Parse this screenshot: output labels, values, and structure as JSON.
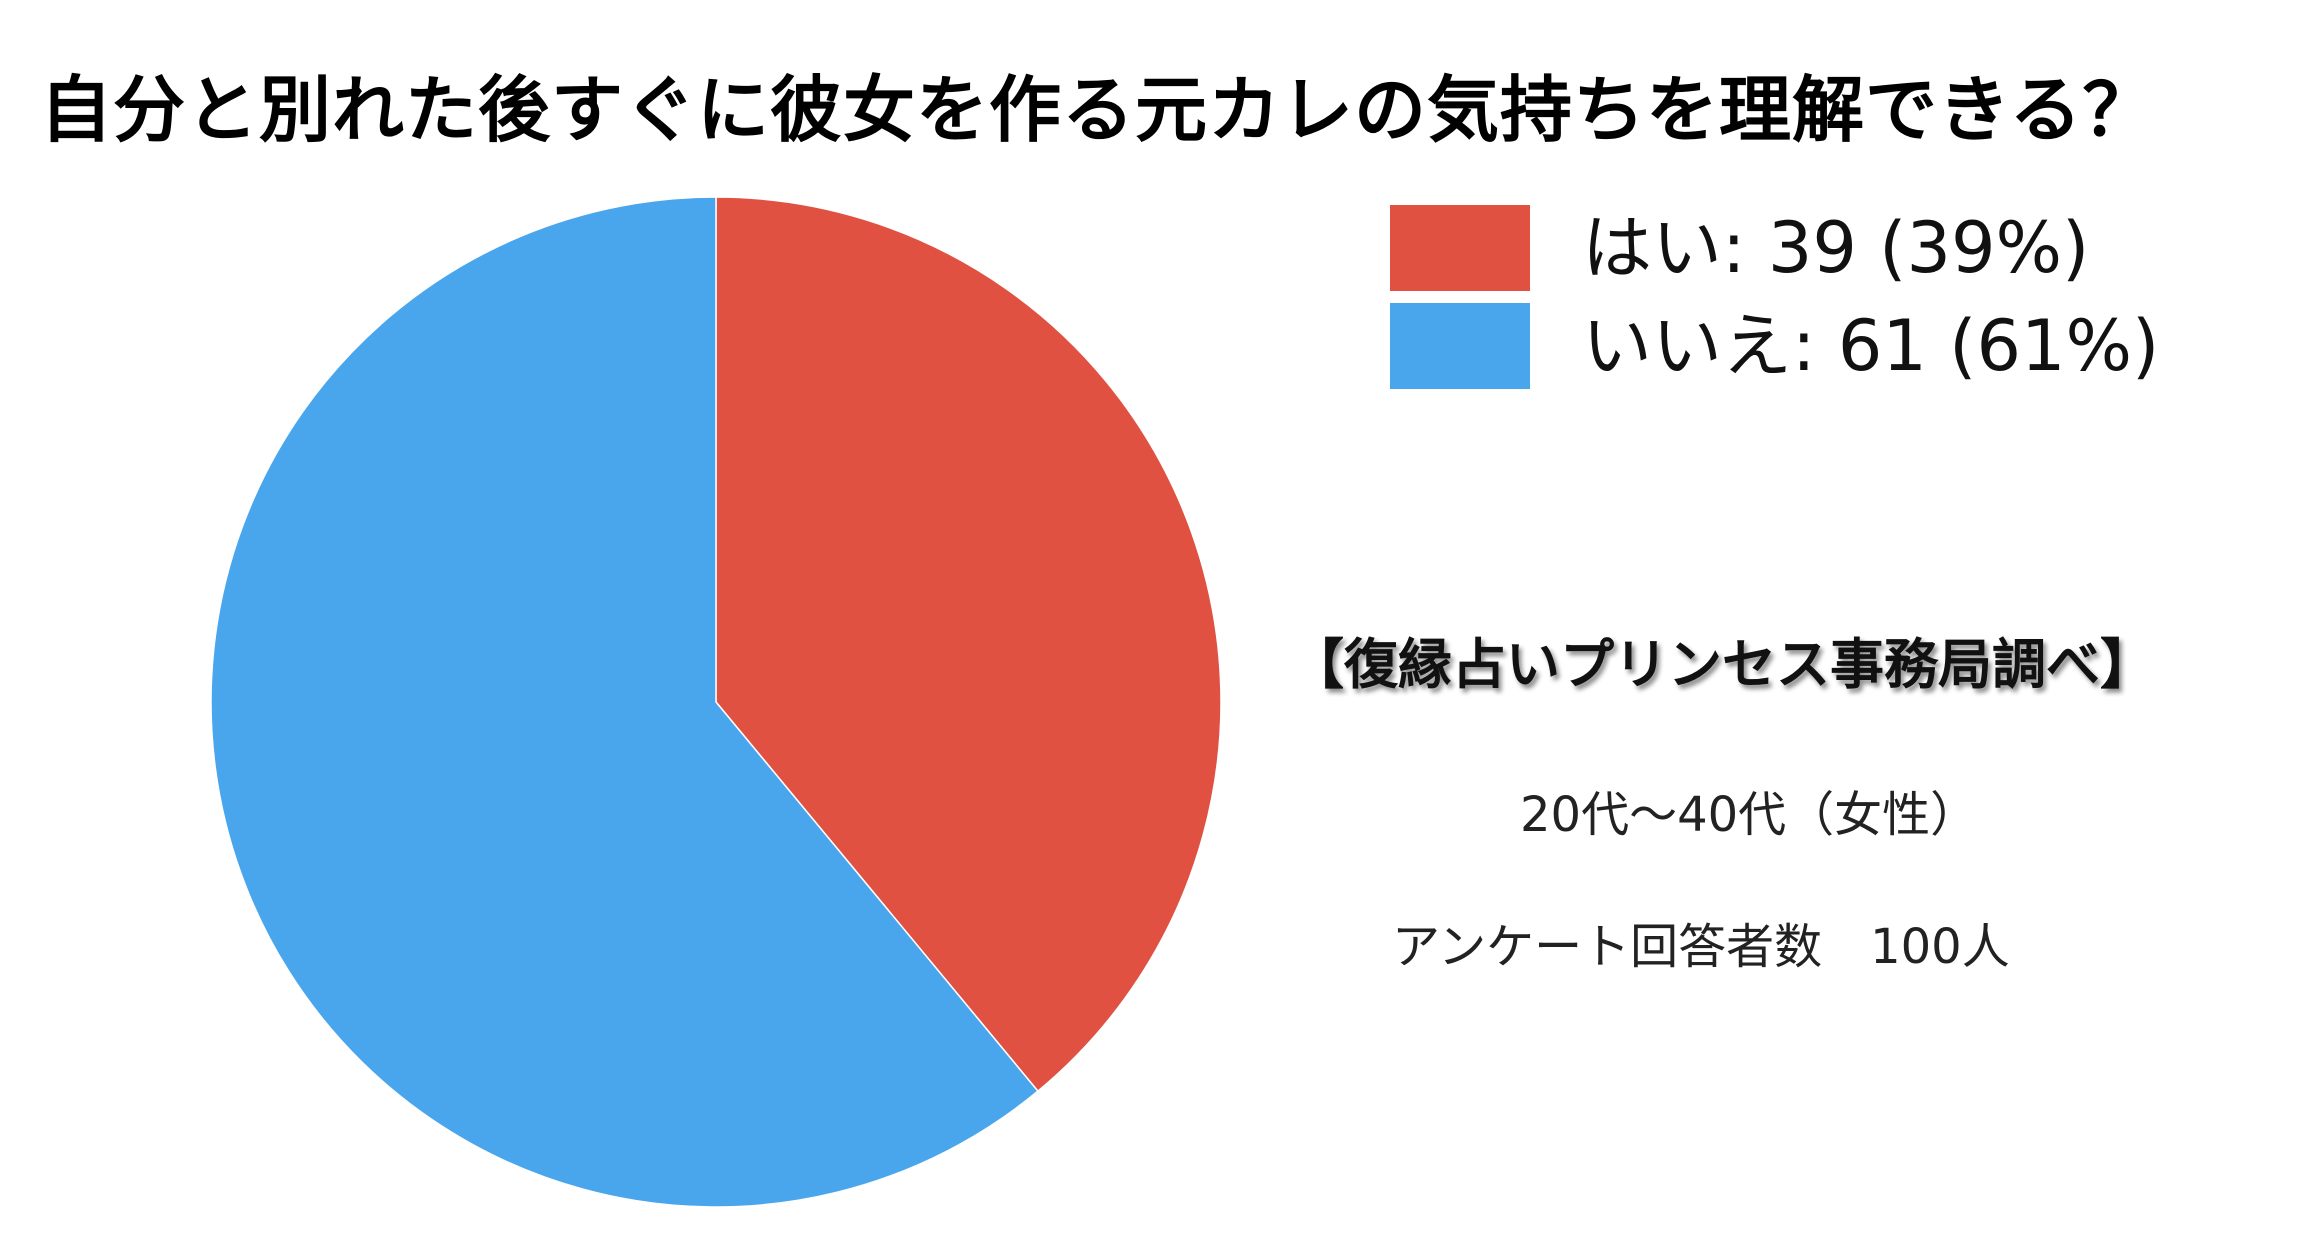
{
  "chart_data": {
    "type": "pie",
    "title": "自分と別れた後すぐに彼女を作る元カレの気持ちを理解できる？",
    "categories": [
      "はい",
      "いいえ"
    ],
    "values": [
      39,
      61
    ],
    "percentages": [
      39,
      61
    ],
    "colors": [
      "#E05142",
      "#49A6ED"
    ],
    "legend_labels": [
      "はい: 39 (39%)",
      "いいえ: 61 (61%)"
    ],
    "legend_position": "top-right"
  },
  "notes": {
    "source": "【復縁占いプリンセス事務局調べ】",
    "respondents": "20代〜40代（女性）",
    "sample_size": "アンケート回答者数　100人"
  }
}
